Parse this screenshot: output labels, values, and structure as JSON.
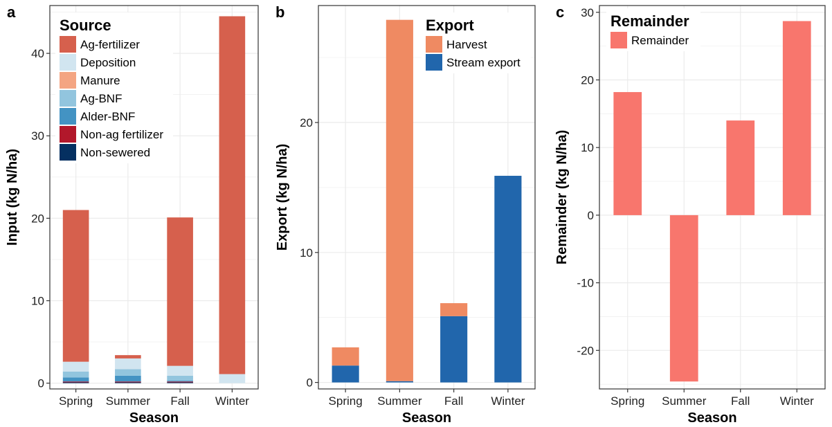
{
  "colors": {
    "ag_fertilizer": "#D6604D",
    "deposition": "#D1E5F0",
    "manure": "#F4A582",
    "ag_bnf": "#92C5DE",
    "alder_bnf": "#4393C3",
    "non_ag_fertilizer": "#B2182B",
    "non_sewered": "#053061",
    "harvest": "#EF8A62",
    "stream_export": "#2166AC",
    "remainder": "#F8766D"
  },
  "chart_data": [
    {
      "panel_label": "a",
      "type": "bar",
      "stacked": true,
      "categories": [
        "Spring",
        "Summer",
        "Fall",
        "Winter"
      ],
      "xlabel": "Season",
      "ylabel": "Input (kg N/ha)",
      "ylim": [
        -0.7,
        45.8
      ],
      "yticks": [
        0,
        10,
        20,
        30,
        40
      ],
      "legend_title": "Source",
      "legend_position": "top-left",
      "grid": true,
      "series": [
        {
          "name": "Non-sewered",
          "color_key": "non_sewered",
          "values": [
            0.1,
            0.1,
            0.1,
            0.0
          ]
        },
        {
          "name": "Non-ag fertilizer",
          "color_key": "non_ag_fertilizer",
          "values": [
            0.1,
            0.1,
            0.1,
            0.0
          ]
        },
        {
          "name": "Alder-BNF",
          "color_key": "alder_bnf",
          "values": [
            0.5,
            0.7,
            0.1,
            0.0
          ]
        },
        {
          "name": "Ag-BNF",
          "color_key": "ag_bnf",
          "values": [
            0.7,
            0.8,
            0.6,
            0.0
          ]
        },
        {
          "name": "Manure",
          "color_key": "manure",
          "values": [
            0.0,
            0.0,
            0.0,
            0.0
          ]
        },
        {
          "name": "Deposition",
          "color_key": "deposition",
          "values": [
            1.2,
            1.3,
            1.2,
            1.1
          ]
        },
        {
          "name": "Ag-fertilizer",
          "color_key": "ag_fertilizer",
          "values": [
            18.4,
            0.4,
            18.0,
            43.4
          ]
        }
      ],
      "legend_order": [
        "Ag-fertilizer",
        "Deposition",
        "Manure",
        "Ag-BNF",
        "Alder-BNF",
        "Non-ag fertilizer",
        "Non-sewered"
      ]
    },
    {
      "panel_label": "b",
      "type": "bar",
      "stacked": true,
      "categories": [
        "Spring",
        "Summer",
        "Fall",
        "Winter"
      ],
      "xlabel": "Season",
      "ylabel": "Export (kg N/ha)",
      "ylim": [
        -0.5,
        29.0
      ],
      "yticks": [
        0,
        10,
        20
      ],
      "legend_title": "Export",
      "legend_position": "top-right",
      "grid": true,
      "series": [
        {
          "name": "Stream export",
          "color_key": "stream_export",
          "values": [
            1.3,
            0.1,
            5.1,
            15.9
          ]
        },
        {
          "name": "Harvest",
          "color_key": "harvest",
          "values": [
            1.4,
            27.8,
            1.0,
            0.0
          ]
        }
      ],
      "legend_order": [
        "Harvest",
        "Stream export"
      ]
    },
    {
      "panel_label": "c",
      "type": "bar",
      "stacked": false,
      "categories": [
        "Spring",
        "Summer",
        "Fall",
        "Winter"
      ],
      "xlabel": "Season",
      "ylabel": "Remainder (kg N/ha)",
      "ylim": [
        -25.7,
        31.0
      ],
      "yticks": [
        -20,
        -10,
        0,
        10,
        20,
        30
      ],
      "legend_title": "Remainder",
      "legend_position": "top-left",
      "grid": true,
      "series": [
        {
          "name": "Remainder",
          "color_key": "remainder",
          "values": [
            18.2,
            -24.6,
            14.0,
            28.7
          ]
        }
      ],
      "legend_order": [
        "Remainder"
      ]
    }
  ]
}
